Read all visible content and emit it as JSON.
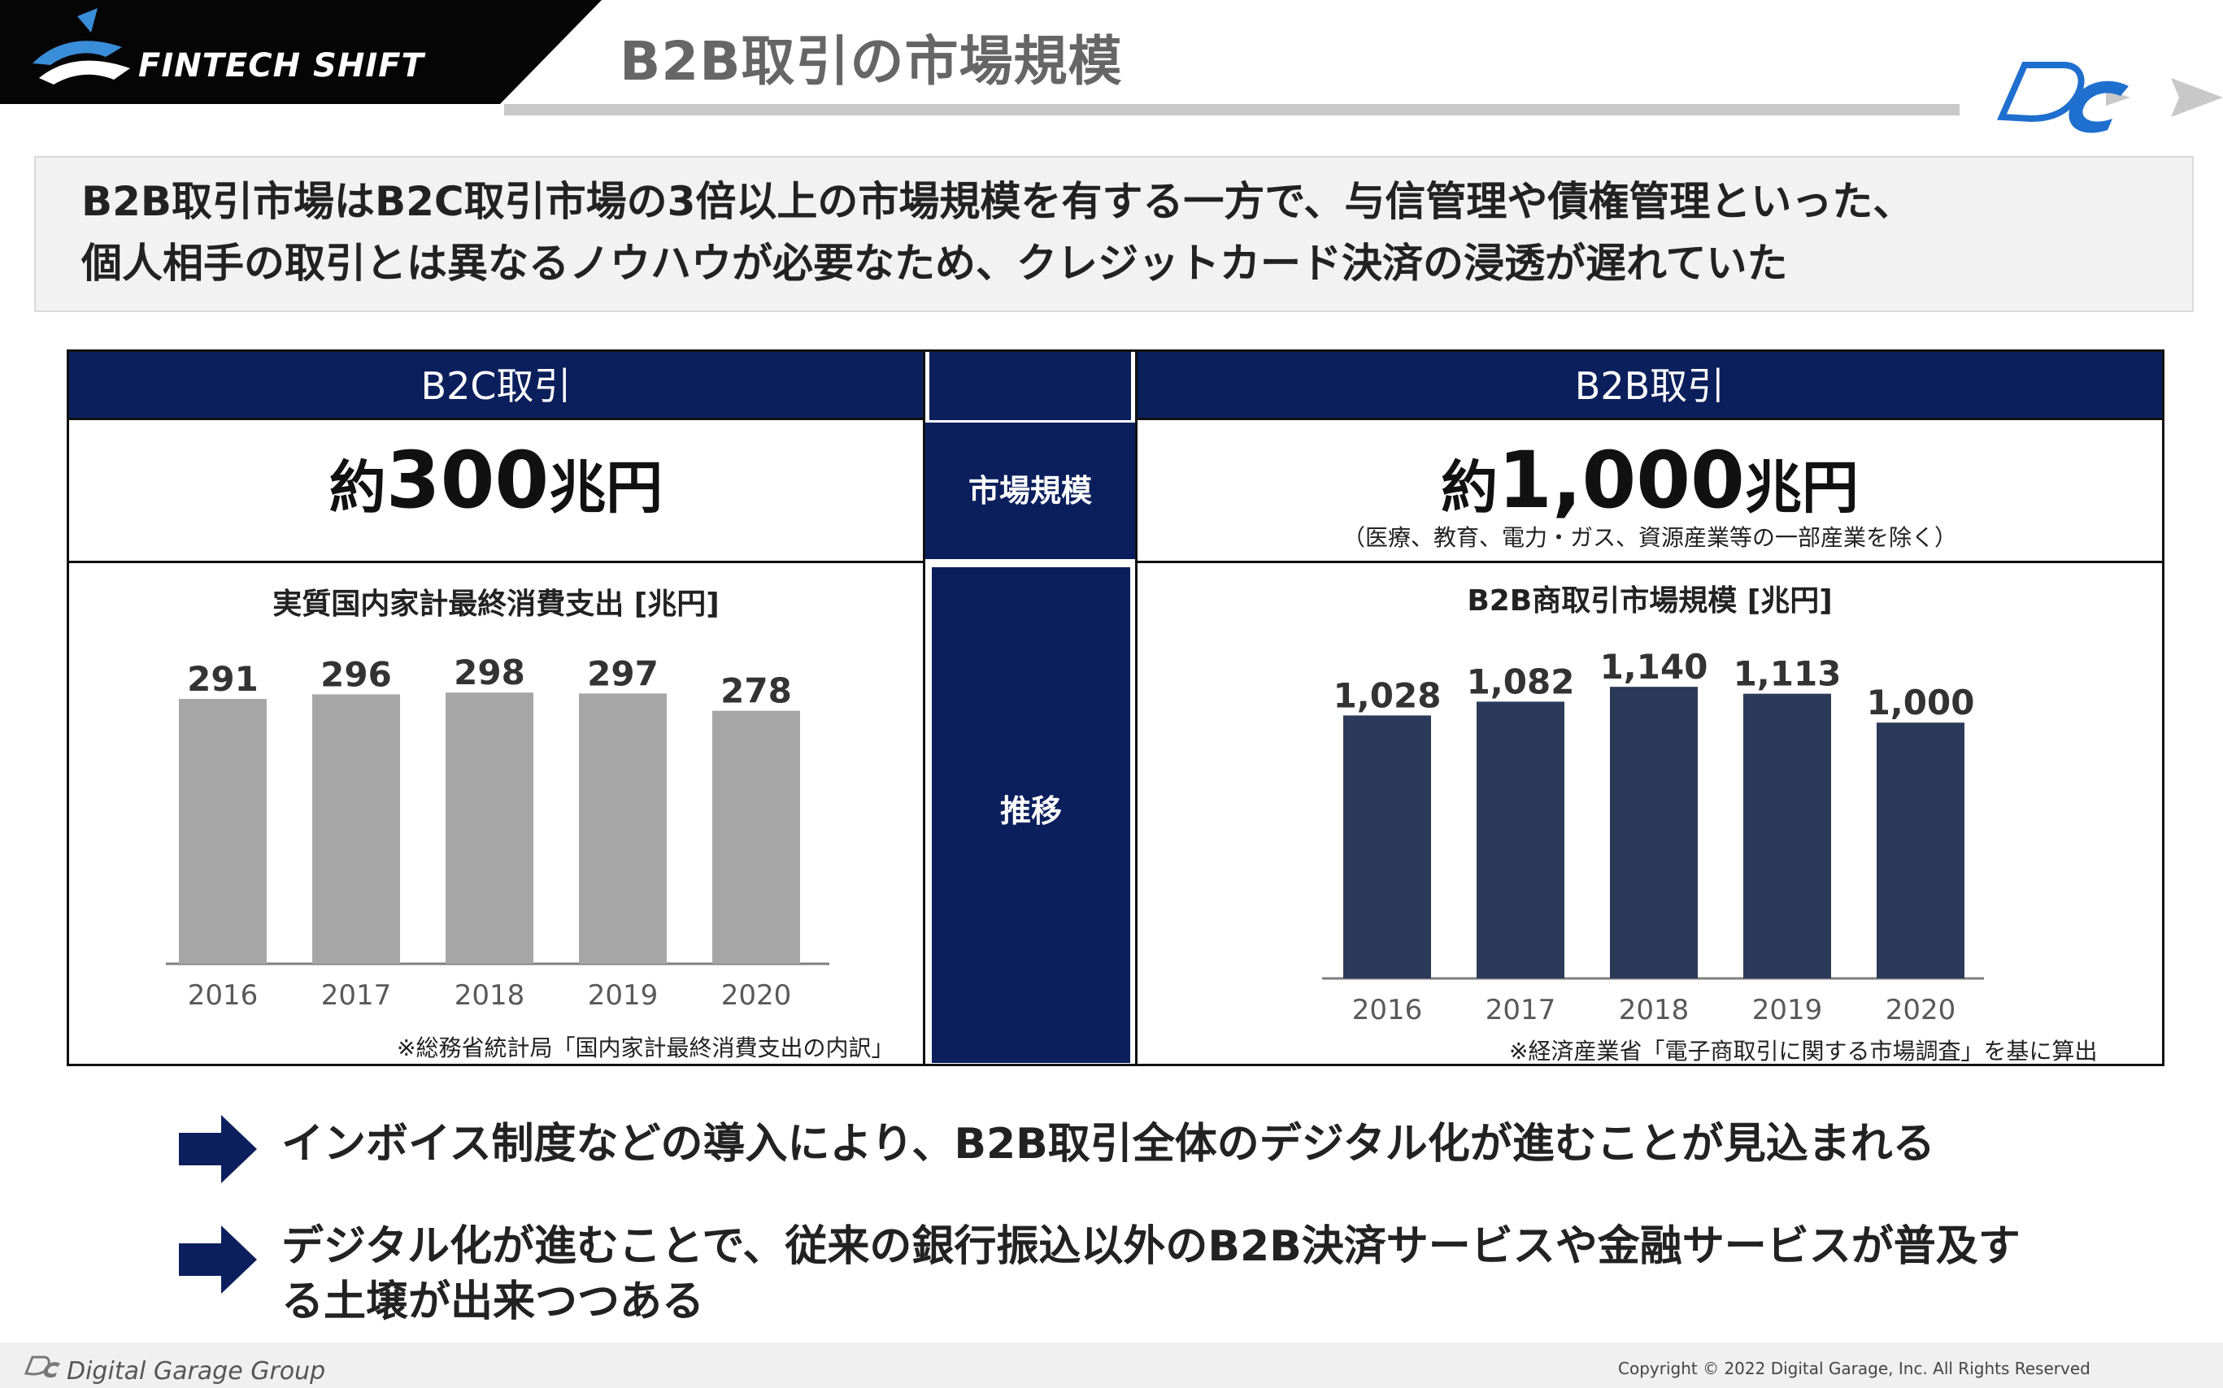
{
  "header": {
    "brand": "FINTECH SHIFT",
    "title": "B2B取引の市場規模"
  },
  "summary": {
    "line1": "B2B取引市場はB2C取引市場の3倍以上の市場規模を有する一方で、与信管理や債権管理といった、",
    "line2": "個人相手の取引とは異なるノウハウが必要なため、クレジットカード決済の浸透が遅れていた"
  },
  "comparison": {
    "b2c_header": "B2C取引",
    "b2b_header": "B2B取引",
    "row_market_size": "市場規模",
    "row_trend": "推移",
    "b2c_value": {
      "prefix": "約",
      "number": "300",
      "unit": "兆円"
    },
    "b2b_value": {
      "prefix": "約",
      "number": "1,000",
      "unit": "兆円"
    },
    "b2b_note": "（医療、教育、電力・ガス、資源産業等の一部産業を除く）",
    "b2c_source": "※総務省統計局「国内家計最終消費支出の内訳」",
    "b2b_source": "※経済産業省「電子商取引に関する市場調査」を基に算出"
  },
  "chart_data": [
    {
      "type": "bar",
      "title": "実質国内家計最終消費支出 [兆円]",
      "categories": [
        "2016",
        "2017",
        "2018",
        "2019",
        "2020"
      ],
      "values": [
        291,
        296,
        298,
        297,
        278
      ],
      "labels": [
        "291",
        "296",
        "298",
        "297",
        "278"
      ],
      "color": "#a6a6a6",
      "ylim": [
        0,
        300
      ],
      "grid": false
    },
    {
      "type": "bar",
      "title": "B2B商取引市場規模 [兆円]",
      "categories": [
        "2016",
        "2017",
        "2018",
        "2019",
        "2020"
      ],
      "values": [
        1028,
        1082,
        1140,
        1113,
        1000
      ],
      "labels": [
        "1,028",
        "1,082",
        "1,140",
        "1,113",
        "1,000"
      ],
      "color": "#2b3a59",
      "ylim": [
        0,
        1150
      ],
      "grid": false
    }
  ],
  "conclusions": [
    "インボイス制度などの導入により、B2B取引全体のデジタル化が進むことが見込まれる",
    "デジタル化が進むことで、従来の銀行振込以外のB2B決済サービスや金融サービスが普及する土壌が出来つつある"
  ],
  "footer": {
    "brand": "Digital Garage Group",
    "copyright": "Copyright © 2022 Digital Garage, Inc. All Rights Reserved"
  },
  "colors": {
    "navy": "#0b1f5c",
    "b2c_bar": "#a6a6a6",
    "b2b_bar": "#2b3a59",
    "title_gray": "#666666"
  }
}
